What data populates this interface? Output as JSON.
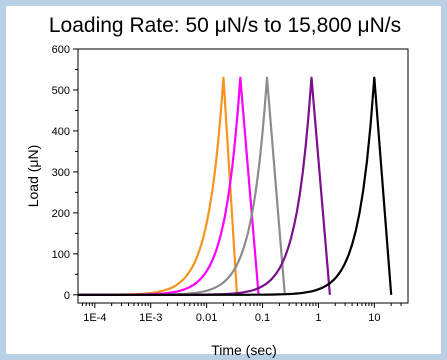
{
  "chart_data": {
    "type": "line",
    "title": "Loading Rate: 50 μN/s to 15,800 μN/s",
    "xlabel": "Time (sec)",
    "ylabel": "Load (μN)",
    "x_scale": "log",
    "xlim": [
      5e-05,
      40
    ],
    "ylim": [
      -20,
      600
    ],
    "x_ticks": [
      0.0001,
      0.001,
      0.01,
      0.1,
      1,
      10
    ],
    "x_tick_labels": [
      "1E-4",
      "1E-3",
      "0.01",
      "0.1",
      "1",
      "10"
    ],
    "y_ticks": [
      0,
      100,
      200,
      300,
      400,
      500,
      600
    ],
    "y_tick_labels": [
      "0",
      "100",
      "200",
      "300",
      "400",
      "500",
      "600"
    ],
    "grid": false,
    "legend": "none",
    "series": [
      {
        "color": "#f7941d",
        "peak_x": 0.02,
        "peak_y": 530,
        "end_x": 0.035
      },
      {
        "color": "#ff00ff",
        "peak_x": 0.04,
        "peak_y": 530,
        "end_x": 0.085
      },
      {
        "color": "#8c8c8c",
        "peak_x": 0.12,
        "peak_y": 530,
        "end_x": 0.25
      },
      {
        "color": "#7b0f8c",
        "peak_x": 0.75,
        "peak_y": 530,
        "end_x": 1.6
      },
      {
        "color": "#000000",
        "peak_x": 10,
        "peak_y": 530,
        "end_x": 20
      }
    ]
  }
}
